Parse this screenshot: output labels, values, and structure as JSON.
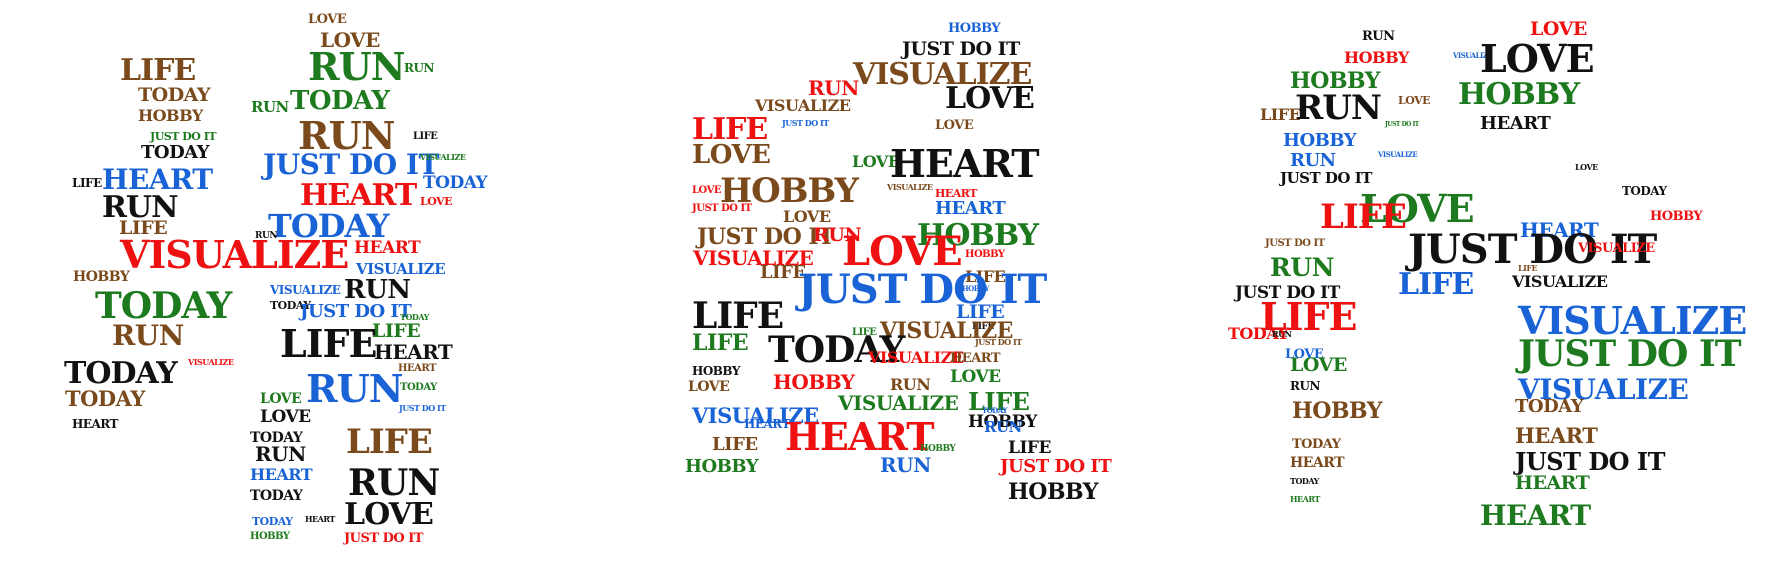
{
  "colors": {
    "red": "#ee1111",
    "green": "#1e7a1e",
    "blue": "#1a63d6",
    "brown": "#7a4a1c",
    "black": "#111111"
  },
  "clouds": [
    {
      "name": "left",
      "words": [
        {
          "text": "LOVE",
          "color": "brown"
        },
        {
          "text": "LOVE",
          "color": "brown"
        },
        {
          "text": "LIFE",
          "color": "brown"
        },
        {
          "text": "RUN",
          "color": "green"
        },
        {
          "text": "RUN",
          "color": "green"
        },
        {
          "text": "TODAY",
          "color": "brown"
        },
        {
          "text": "HOBBY",
          "color": "brown"
        },
        {
          "text": "RUN",
          "color": "green"
        },
        {
          "text": "TODAY",
          "color": "green"
        },
        {
          "text": "RUN",
          "color": "brown"
        },
        {
          "text": "JUST DO IT",
          "color": "green"
        },
        {
          "text": "LIFE",
          "color": "black"
        },
        {
          "text": "TODAY",
          "color": "black"
        },
        {
          "text": "JUST DO IT",
          "color": "blue"
        },
        {
          "text": "VISUALIZE",
          "color": "green"
        },
        {
          "text": "LIFE",
          "color": "black"
        },
        {
          "text": "HEART",
          "color": "blue"
        },
        {
          "text": "HEART",
          "color": "red"
        },
        {
          "text": "TODAY",
          "color": "blue"
        },
        {
          "text": "LOVE",
          "color": "red"
        },
        {
          "text": "RUN",
          "color": "black"
        },
        {
          "text": "LIFE",
          "color": "brown"
        },
        {
          "text": "TODAY",
          "color": "blue"
        },
        {
          "text": "RUN",
          "color": "black"
        },
        {
          "text": "VISUALIZE",
          "color": "red"
        },
        {
          "text": "HEART",
          "color": "red"
        },
        {
          "text": "VISUALIZE",
          "color": "blue"
        },
        {
          "text": "HOBBY",
          "color": "brown"
        },
        {
          "text": "RUN",
          "color": "black"
        },
        {
          "text": "VISUALIZE",
          "color": "blue"
        },
        {
          "text": "TODAY",
          "color": "green"
        },
        {
          "text": "TODAY",
          "color": "black"
        },
        {
          "text": "JUST DO IT",
          "color": "blue"
        },
        {
          "text": "TODAY",
          "color": "green"
        },
        {
          "text": "RUN",
          "color": "brown"
        },
        {
          "text": "LIFE",
          "color": "green"
        },
        {
          "text": "LIFE",
          "color": "black"
        },
        {
          "text": "HEART",
          "color": "black"
        },
        {
          "text": "TODAY",
          "color": "black"
        },
        {
          "text": "VISUALIZE",
          "color": "red"
        },
        {
          "text": "HEART",
          "color": "brown"
        },
        {
          "text": "RUN",
          "color": "blue"
        },
        {
          "text": "TODAY",
          "color": "green"
        },
        {
          "text": "TODAY",
          "color": "brown"
        },
        {
          "text": "LOVE",
          "color": "green"
        },
        {
          "text": "JUST DO IT",
          "color": "blue"
        },
        {
          "text": "HEART",
          "color": "black"
        },
        {
          "text": "LOVE",
          "color": "black"
        },
        {
          "text": "LIFE",
          "color": "brown"
        },
        {
          "text": "TODAY",
          "color": "black"
        },
        {
          "text": "RUN",
          "color": "black"
        },
        {
          "text": "RUN",
          "color": "black"
        },
        {
          "text": "HEART",
          "color": "blue"
        },
        {
          "text": "TODAY",
          "color": "black"
        },
        {
          "text": "LOVE",
          "color": "black"
        },
        {
          "text": "TODAY",
          "color": "blue"
        },
        {
          "text": "HEART",
          "color": "black"
        },
        {
          "text": "HOBBY",
          "color": "green"
        },
        {
          "text": "JUST DO IT",
          "color": "red"
        }
      ]
    },
    {
      "name": "middle",
      "words": [
        {
          "text": "HOBBY",
          "color": "blue"
        },
        {
          "text": "JUST DO IT",
          "color": "black"
        },
        {
          "text": "VISUALIZE",
          "color": "brown"
        },
        {
          "text": "RUN",
          "color": "red"
        },
        {
          "text": "LOVE",
          "color": "black"
        },
        {
          "text": "VISUALIZE",
          "color": "brown"
        },
        {
          "text": "JUST DO IT",
          "color": "blue"
        },
        {
          "text": "LOVE",
          "color": "brown"
        },
        {
          "text": "LIFE",
          "color": "red"
        },
        {
          "text": "LOVE",
          "color": "brown"
        },
        {
          "text": "LOVE",
          "color": "green"
        },
        {
          "text": "HEART",
          "color": "black"
        },
        {
          "text": "HOBBY",
          "color": "brown"
        },
        {
          "text": "VISUALIZE",
          "color": "brown"
        },
        {
          "text": "HEART",
          "color": "red"
        },
        {
          "text": "LOVE",
          "color": "red"
        },
        {
          "text": "HEART",
          "color": "blue"
        },
        {
          "text": "JUST DO IT",
          "color": "red"
        },
        {
          "text": "LOVE",
          "color": "brown"
        },
        {
          "text": "JUST DO IT",
          "color": "brown"
        },
        {
          "text": "RUN",
          "color": "red"
        },
        {
          "text": "HOBBY",
          "color": "green"
        },
        {
          "text": "LOVE",
          "color": "red"
        },
        {
          "text": "HOBBY",
          "color": "red"
        },
        {
          "text": "VISUALIZE",
          "color": "red"
        },
        {
          "text": "LIFE",
          "color": "brown"
        },
        {
          "text": "LIFE",
          "color": "brown"
        },
        {
          "text": "HOBBY",
          "color": "blue"
        },
        {
          "text": "JUST DO IT",
          "color": "blue"
        },
        {
          "text": "LIFE",
          "color": "black"
        },
        {
          "text": "LIFE",
          "color": "blue"
        },
        {
          "text": "LIFE",
          "color": "black"
        },
        {
          "text": "VISUALIZE",
          "color": "brown"
        },
        {
          "text": "LIFE",
          "color": "green"
        },
        {
          "text": "LIFE",
          "color": "green"
        },
        {
          "text": "TODAY",
          "color": "black"
        },
        {
          "text": "JUST DO IT",
          "color": "brown"
        },
        {
          "text": "VISUALIZE",
          "color": "red"
        },
        {
          "text": "HEART",
          "color": "brown"
        },
        {
          "text": "LOVE",
          "color": "green"
        },
        {
          "text": "HOBBY",
          "color": "black"
        },
        {
          "text": "HOBBY",
          "color": "red"
        },
        {
          "text": "RUN",
          "color": "brown"
        },
        {
          "text": "LIFE",
          "color": "green"
        },
        {
          "text": "LOVE",
          "color": "brown"
        },
        {
          "text": "VISUALIZE",
          "color": "blue"
        },
        {
          "text": "VISUALIZE",
          "color": "green"
        },
        {
          "text": "TODAY",
          "color": "blue"
        },
        {
          "text": "HOBBY",
          "color": "black"
        },
        {
          "text": "HEART",
          "color": "blue"
        },
        {
          "text": "HEART",
          "color": "red"
        },
        {
          "text": "RUN",
          "color": "blue"
        },
        {
          "text": "LIFE",
          "color": "brown"
        },
        {
          "text": "HOBBY",
          "color": "green"
        },
        {
          "text": "LIFE",
          "color": "black"
        },
        {
          "text": "RUN",
          "color": "blue"
        },
        {
          "text": "JUST DO IT",
          "color": "red"
        },
        {
          "text": "HOBBY",
          "color": "green"
        },
        {
          "text": "HOBBY",
          "color": "black"
        }
      ]
    },
    {
      "name": "right",
      "words": [
        {
          "text": "RUN",
          "color": "black"
        },
        {
          "text": "LOVE",
          "color": "red"
        },
        {
          "text": "HOBBY",
          "color": "red"
        },
        {
          "text": "VISUALIZE",
          "color": "blue"
        },
        {
          "text": "LOVE",
          "color": "black"
        },
        {
          "text": "HOBBY",
          "color": "green"
        },
        {
          "text": "HOBBY",
          "color": "green"
        },
        {
          "text": "LIFE",
          "color": "brown"
        },
        {
          "text": "RUN",
          "color": "black"
        },
        {
          "text": "LOVE",
          "color": "brown"
        },
        {
          "text": "HEART",
          "color": "black"
        },
        {
          "text": "HOBBY",
          "color": "blue"
        },
        {
          "text": "RUN",
          "color": "blue"
        },
        {
          "text": "JUST DO IT",
          "color": "green"
        },
        {
          "text": "JUST DO IT",
          "color": "black"
        },
        {
          "text": "VISUALIZE",
          "color": "blue"
        },
        {
          "text": "LOVE",
          "color": "black"
        },
        {
          "text": "LOVE",
          "color": "green"
        },
        {
          "text": "TODAY",
          "color": "black"
        },
        {
          "text": "LIFE",
          "color": "red"
        },
        {
          "text": "HOBBY",
          "color": "red"
        },
        {
          "text": "HEART",
          "color": "blue"
        },
        {
          "text": "JUST DO IT",
          "color": "brown"
        },
        {
          "text": "JUST DO IT",
          "color": "black"
        },
        {
          "text": "VISUALIZE",
          "color": "red"
        },
        {
          "text": "RUN",
          "color": "green"
        },
        {
          "text": "LIFE",
          "color": "blue"
        },
        {
          "text": "VISUALIZE",
          "color": "black"
        },
        {
          "text": "JUST DO IT",
          "color": "black"
        },
        {
          "text": "LIFE",
          "color": "brown"
        },
        {
          "text": "LIFE",
          "color": "red"
        },
        {
          "text": "VISUALIZE",
          "color": "blue"
        },
        {
          "text": "TODAY",
          "color": "red"
        },
        {
          "text": "RUN",
          "color": "black"
        },
        {
          "text": "JUST DO IT",
          "color": "green"
        },
        {
          "text": "LOVE",
          "color": "blue"
        },
        {
          "text": "LOVE",
          "color": "green"
        },
        {
          "text": "VISUALIZE",
          "color": "blue"
        },
        {
          "text": "RUN",
          "color": "black"
        },
        {
          "text": "HOBBY",
          "color": "brown"
        },
        {
          "text": "TODAY",
          "color": "brown"
        },
        {
          "text": "TODAY",
          "color": "brown"
        },
        {
          "text": "HEART",
          "color": "brown"
        },
        {
          "text": "HEART",
          "color": "brown"
        },
        {
          "text": "JUST DO IT",
          "color": "black"
        },
        {
          "text": "TODAY",
          "color": "black"
        },
        {
          "text": "HEART",
          "color": "green"
        },
        {
          "text": "HEART",
          "color": "green"
        },
        {
          "text": "HEART",
          "color": "green"
        }
      ]
    }
  ]
}
